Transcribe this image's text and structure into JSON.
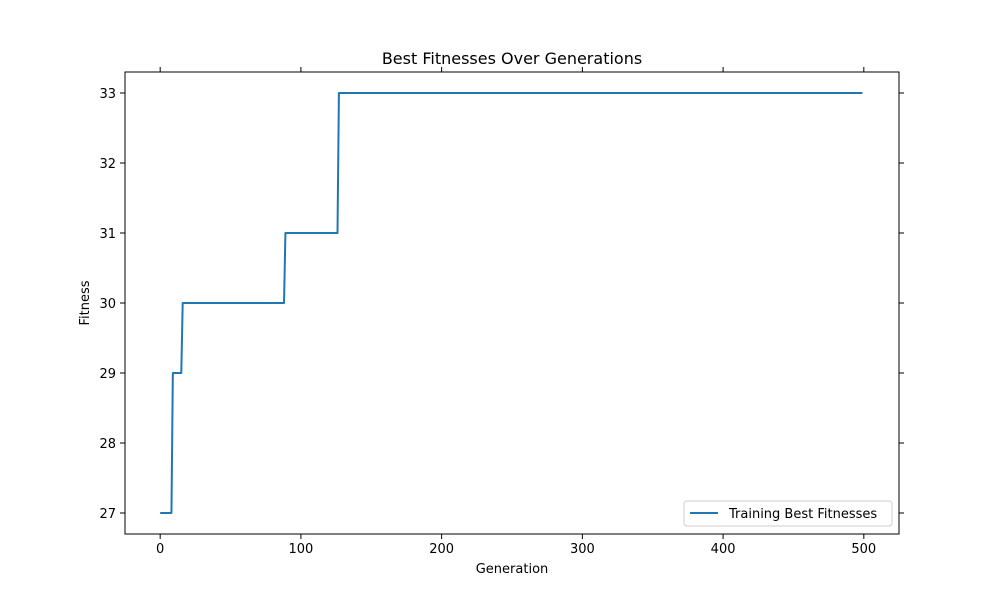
{
  "chart_data": {
    "type": "line",
    "title": "Best Fitnesses Over Generations",
    "xlabel": "Generation",
    "ylabel": "Fitness",
    "xlim": [
      -25,
      525
    ],
    "ylim": [
      26.7,
      33.3
    ],
    "xticks": [
      0,
      100,
      200,
      300,
      400,
      500
    ],
    "yticks": [
      27,
      28,
      29,
      30,
      31,
      32,
      33
    ],
    "grid": false,
    "legend_position": "bottom-right",
    "series": [
      {
        "name": "Training Best Fitnesses",
        "color": "#1f77b4",
        "step_points": [
          [
            0,
            27
          ],
          [
            8,
            27
          ],
          [
            9,
            29
          ],
          [
            15,
            29
          ],
          [
            16,
            30
          ],
          [
            88,
            30
          ],
          [
            89,
            31
          ],
          [
            126,
            31
          ],
          [
            127,
            33
          ],
          [
            499,
            33
          ]
        ]
      }
    ]
  }
}
